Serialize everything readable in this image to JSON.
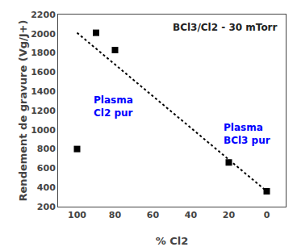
{
  "chart_data": {
    "type": "scatter",
    "title": "BCl3/Cl2 - 30 mTorr",
    "x_label": "% Cl2",
    "y_label": "Rendement de gravure (Vg/J+)",
    "series": [
      {
        "type": "scatter",
        "marker": "square",
        "color": "black",
        "x": [
          100,
          90,
          80,
          20,
          0
        ],
        "values": [
          800,
          2010,
          1830,
          660,
          360
        ]
      },
      {
        "type": "line",
        "line_style": "dotted",
        "color": "black",
        "x": [
          100,
          0
        ],
        "values": [
          2010,
          360
        ]
      }
    ],
    "xlim": [
      110,
      -10
    ],
    "xticks": [
      100,
      80,
      60,
      40,
      20,
      0
    ],
    "ylim": [
      200,
      2200
    ],
    "yticks": [
      200,
      400,
      600,
      800,
      1000,
      1200,
      1400,
      1600,
      1800,
      2000,
      2200
    ],
    "grid": false,
    "annotations": [
      {
        "text": "Plasma\nCl2 pur",
        "color": "#0000FF"
      },
      {
        "text": "Plasma\nBCl3 pur",
        "color": "#0000FF"
      }
    ]
  }
}
